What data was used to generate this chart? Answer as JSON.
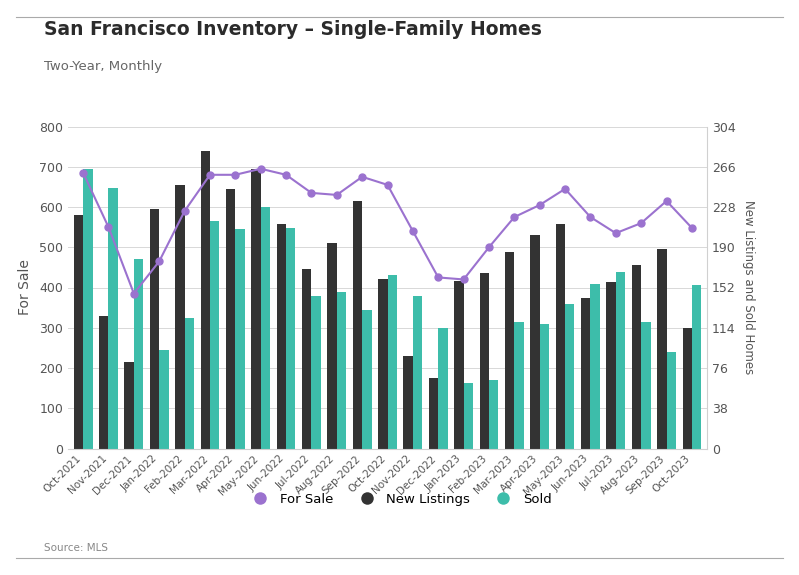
{
  "title": "San Francisco Inventory – Single-Family Homes",
  "subtitle": "Two-Year, Monthly",
  "source": "Source: MLS",
  "ylabel_left": "For Sale",
  "ylabel_right": "New Listings and Sold Homes",
  "categories": [
    "Oct-2021",
    "Nov-2021",
    "Dec-2021",
    "Jan-2022",
    "Feb-2022",
    "Mar-2022",
    "Apr-2022",
    "May-2022",
    "Jun-2022",
    "Jul-2022",
    "Aug-2022",
    "Sep-2022",
    "Oct-2022",
    "Nov-2022",
    "Dec-2022",
    "Jan-2023",
    "Feb-2023",
    "Mar-2023",
    "Apr-2023",
    "May-2023",
    "Jun-2023",
    "Jul-2023",
    "Aug-2023",
    "Sep-2023",
    "Oct-2023"
  ],
  "for_sale": [
    685,
    550,
    385,
    465,
    590,
    680,
    680,
    695,
    680,
    635,
    630,
    675,
    655,
    540,
    425,
    420,
    500,
    575,
    605,
    645,
    575,
    535,
    560,
    615,
    548
  ],
  "new_listings": [
    580,
    330,
    215,
    595,
    655,
    740,
    645,
    695,
    558,
    445,
    510,
    615,
    420,
    230,
    175,
    415,
    435,
    487,
    530,
    558,
    375,
    413,
    455,
    495,
    300
  ],
  "sold": [
    695,
    648,
    470,
    245,
    325,
    565,
    545,
    600,
    548,
    380,
    388,
    345,
    430,
    380,
    300,
    163,
    170,
    315,
    310,
    360,
    408,
    438,
    315,
    240,
    405
  ],
  "bar_color_new_listings": "#333333",
  "bar_color_sold": "#3dbdaa",
  "line_color_for_sale": "#9b72cf",
  "background_color": "#ffffff",
  "plot_bg_color": "#f7f7f5",
  "ylim_left": [
    0,
    800
  ],
  "ylim_right": [
    0,
    304
  ],
  "yticks_left": [
    0,
    100,
    200,
    300,
    400,
    500,
    600,
    700,
    800
  ],
  "yticks_right": [
    0,
    38,
    76,
    114,
    152,
    190,
    228,
    266,
    304
  ]
}
